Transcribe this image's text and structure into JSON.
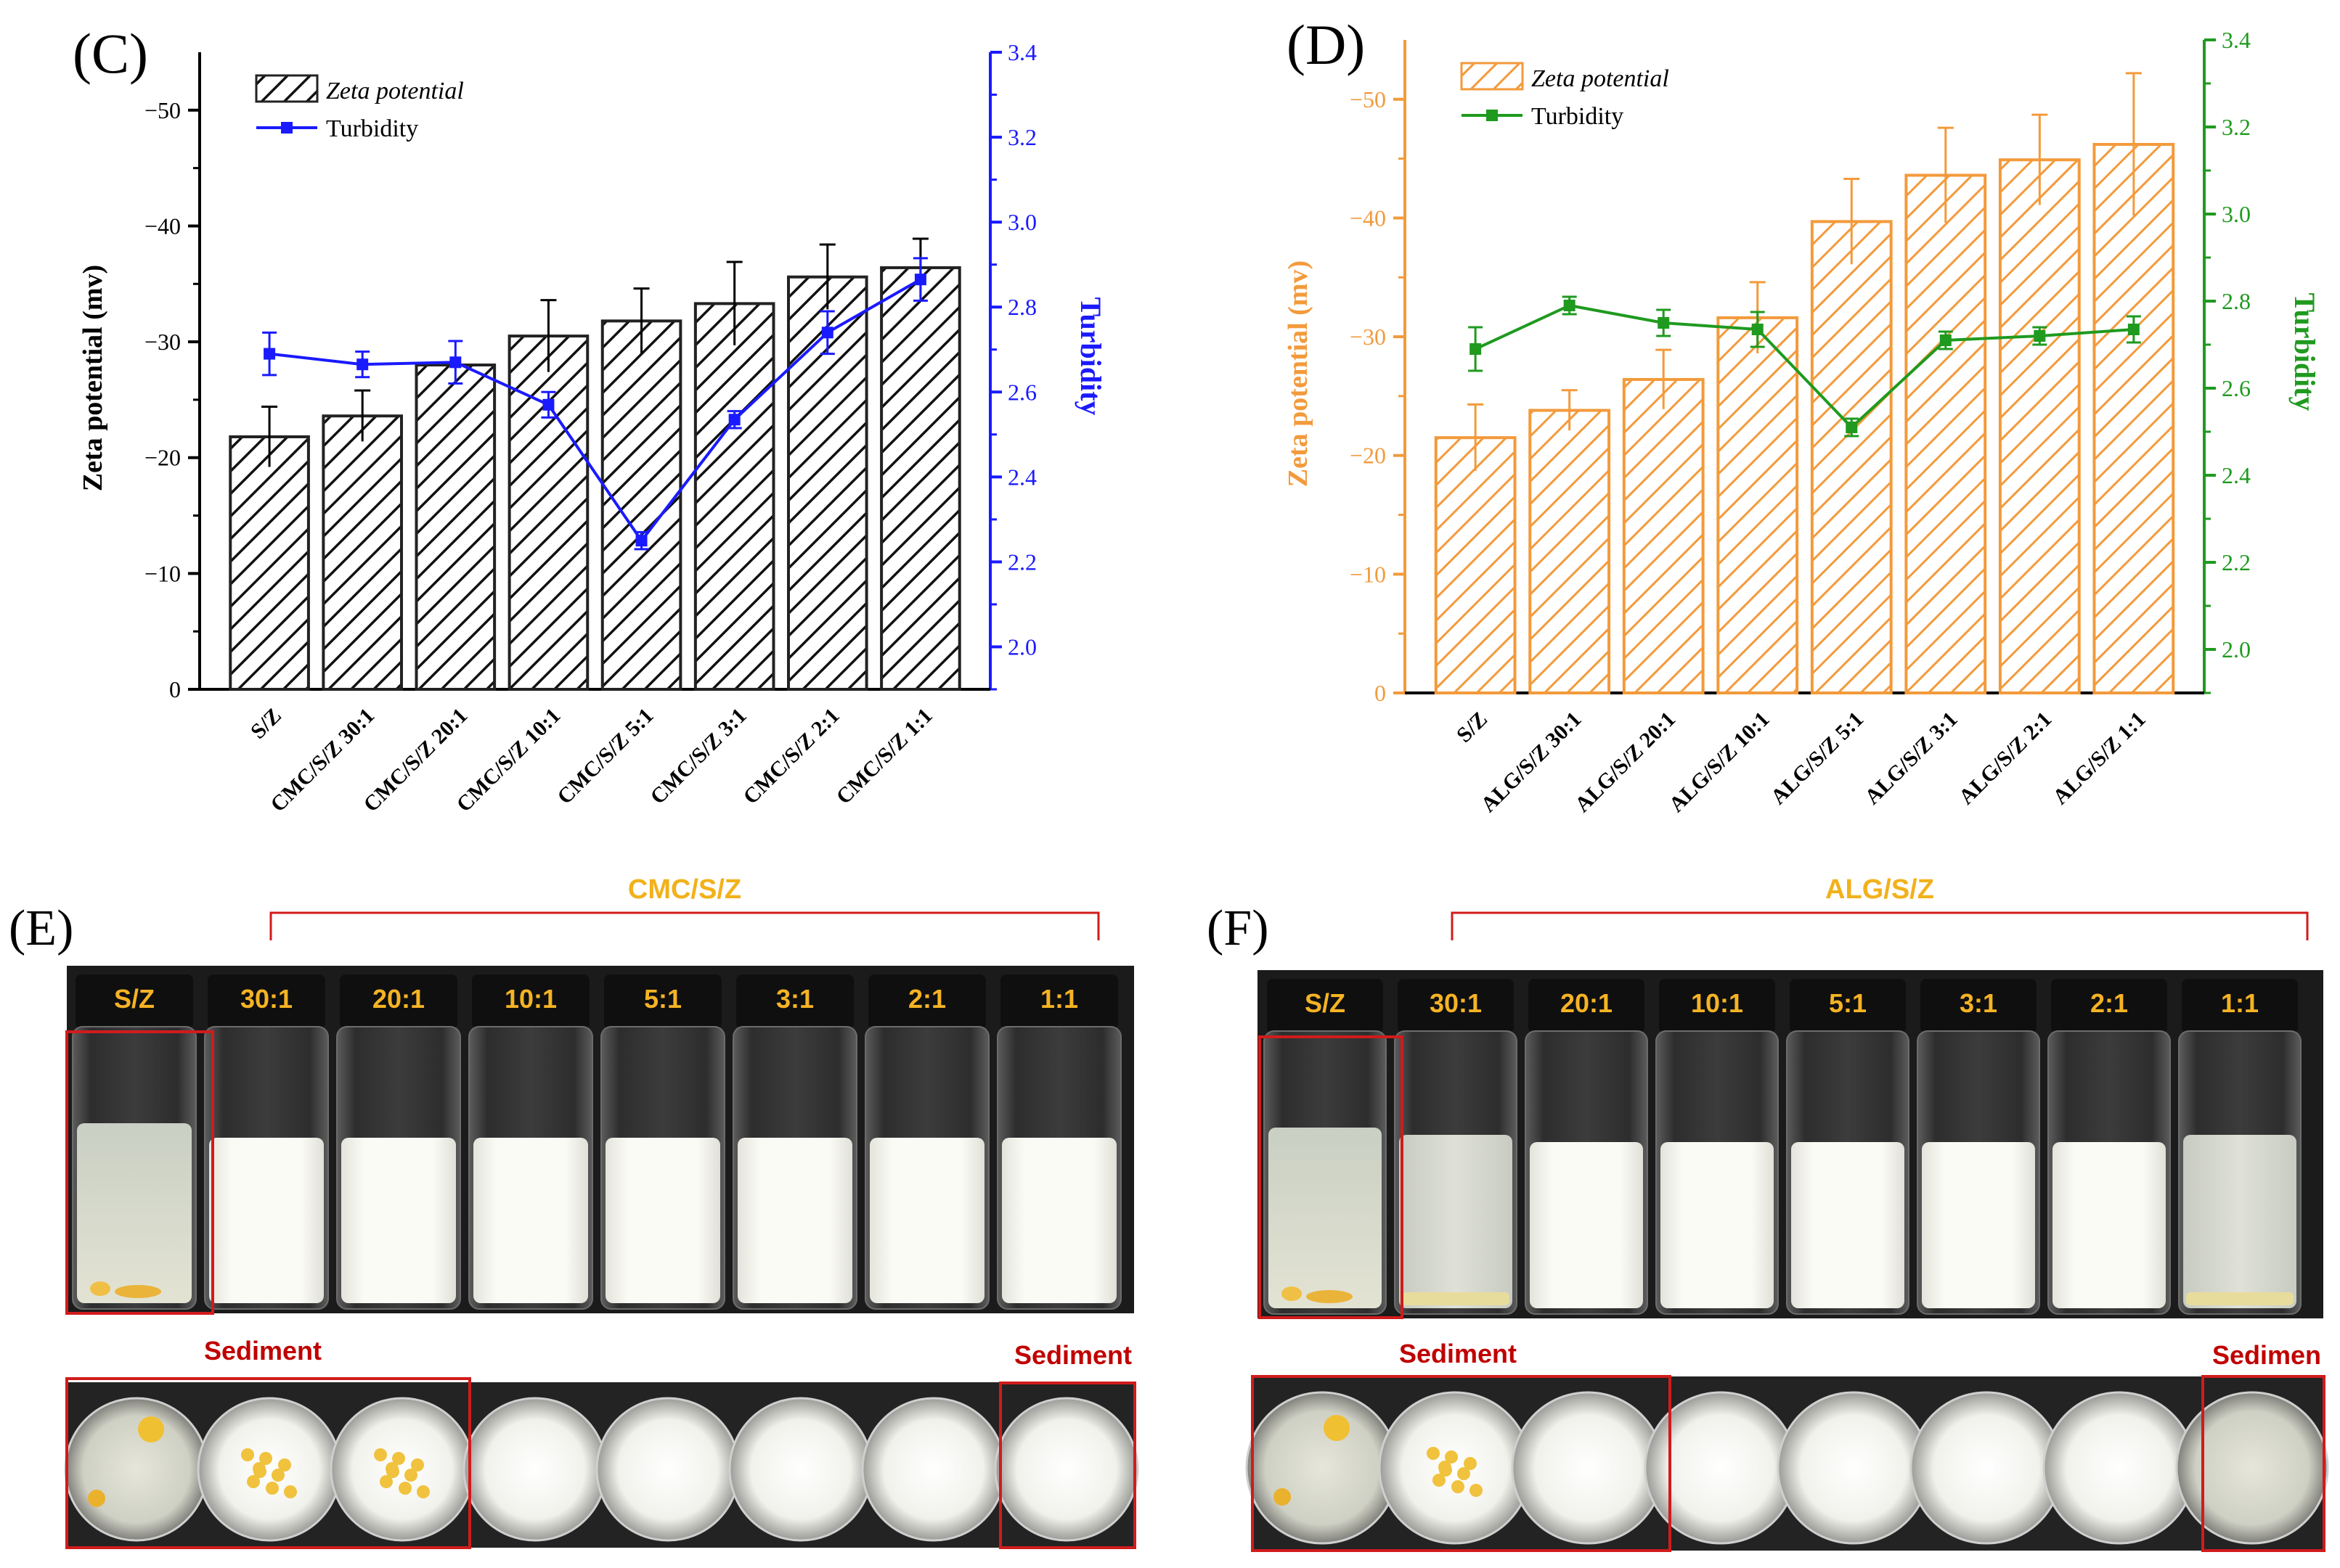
{
  "chart_data": [
    {
      "panel_label": "(C)",
      "type": "bar",
      "title": "",
      "categories": [
        "S/Z",
        "CMC/S/Z 30:1",
        "CMC/S/Z 20:1",
        "CMC/S/Z 10:1",
        "CMC/S/Z 5:1",
        "CMC/S/Z 3:1",
        "CMC/S/Z 2:1",
        "CMC/S/Z 1:1"
      ],
      "series": [
        {
          "name": "Zeta potential",
          "kind": "bar",
          "axis": "left",
          "values": [
            -21.8,
            -23.6,
            -28.0,
            -30.5,
            -31.8,
            -33.3,
            -35.6,
            -36.4
          ],
          "errors": [
            2.6,
            2.2,
            0.0,
            3.1,
            2.8,
            3.6,
            2.8,
            2.5
          ]
        },
        {
          "name": "Turbidity",
          "kind": "line",
          "axis": "right",
          "values": [
            2.69,
            2.665,
            2.67,
            2.57,
            2.25,
            2.535,
            2.74,
            2.865
          ],
          "errors": [
            0.05,
            0.03,
            0.05,
            0.03,
            0.02,
            0.02,
            0.05,
            0.05
          ]
        }
      ],
      "xlabel": "",
      "ylabel": "Zeta potential (mv)",
      "ylim": [
        0,
        -55
      ],
      "yticks": [
        0,
        -10,
        -20,
        -30,
        -40,
        -50
      ],
      "ytick_labels": [
        "0",
        "−10",
        "−20",
        "−30",
        "−40",
        "−50"
      ],
      "y2label": "Turbidity",
      "y2lim": [
        1.9,
        3.4
      ],
      "y2ticks": [
        "2.0",
        "2.2",
        "2.4",
        "2.6",
        "2.8",
        "3.0",
        "3.2",
        "3.4"
      ],
      "colors": {
        "bar": "#222222",
        "line": "#1a1aff",
        "axis2": "#1a1aff"
      },
      "legend": "top-left"
    },
    {
      "panel_label": "(D)",
      "type": "bar",
      "title": "",
      "categories": [
        "S/Z",
        "ALG/S/Z 30:1",
        "ALG/S/Z 20:1",
        "ALG/S/Z 10:1",
        "ALG/S/Z 5:1",
        "ALG/S/Z 3:1",
        "ALG/S/Z 2:1",
        "ALG/S/Z 1:1"
      ],
      "series": [
        {
          "name": "Zeta potential",
          "kind": "bar",
          "axis": "left",
          "values": [
            -21.5,
            -23.8,
            -26.4,
            -31.6,
            -39.7,
            -43.6,
            -44.9,
            -46.2
          ],
          "errors": [
            2.8,
            1.7,
            2.5,
            3.0,
            3.6,
            4.0,
            3.8,
            6.0
          ]
        },
        {
          "name": "Turbidity",
          "kind": "line",
          "axis": "right",
          "values": [
            2.69,
            2.79,
            2.75,
            2.735,
            2.51,
            2.71,
            2.72,
            2.735
          ],
          "errors": [
            0.05,
            0.02,
            0.03,
            0.04,
            0.02,
            0.02,
            0.02,
            0.03
          ]
        }
      ],
      "xlabel": "",
      "ylabel": "Zeta potential (mv)",
      "ylim": [
        0,
        -55
      ],
      "yticks": [
        0,
        -10,
        -20,
        -30,
        -40,
        -50
      ],
      "ytick_labels": [
        "0",
        "−10",
        "−20",
        "−30",
        "−40",
        "−50"
      ],
      "y2label": "Turbidity",
      "y2lim": [
        1.9,
        3.4
      ],
      "y2ticks": [
        "2.0",
        "2.2",
        "2.4",
        "2.6",
        "2.8",
        "3.0",
        "3.2",
        "3.4"
      ],
      "colors": {
        "bar": "#f39a3b",
        "line": "#1f9a1f",
        "axis2": "#1f9a1f",
        "axis1": "#f39a3b"
      },
      "legend": "top-left"
    }
  ],
  "photo_panels": [
    {
      "panel_label": "(E)",
      "group_label": "CMC/S/Z",
      "vial_labels": [
        "S/Z",
        "30:1",
        "20:1",
        "10:1",
        "5:1",
        "3:1",
        "2:1",
        "1:1"
      ],
      "sediment_labels": [
        "Sediment",
        "Sediment"
      ]
    },
    {
      "panel_label": "(F)",
      "group_label": "ALG/S/Z",
      "vial_labels": [
        "S/Z",
        "30:1",
        "20:1",
        "10:1",
        "5:1",
        "3:1",
        "2:1",
        "1:1"
      ],
      "sediment_labels": [
        "Sediment",
        "Sedimen"
      ]
    }
  ],
  "colors": {
    "label_gold": "#f5b324",
    "group_label_gold": "#f2b11b",
    "sediment_red": "#c00000",
    "box_red": "#d11b1b",
    "backdrop": "#1b1b1b"
  }
}
